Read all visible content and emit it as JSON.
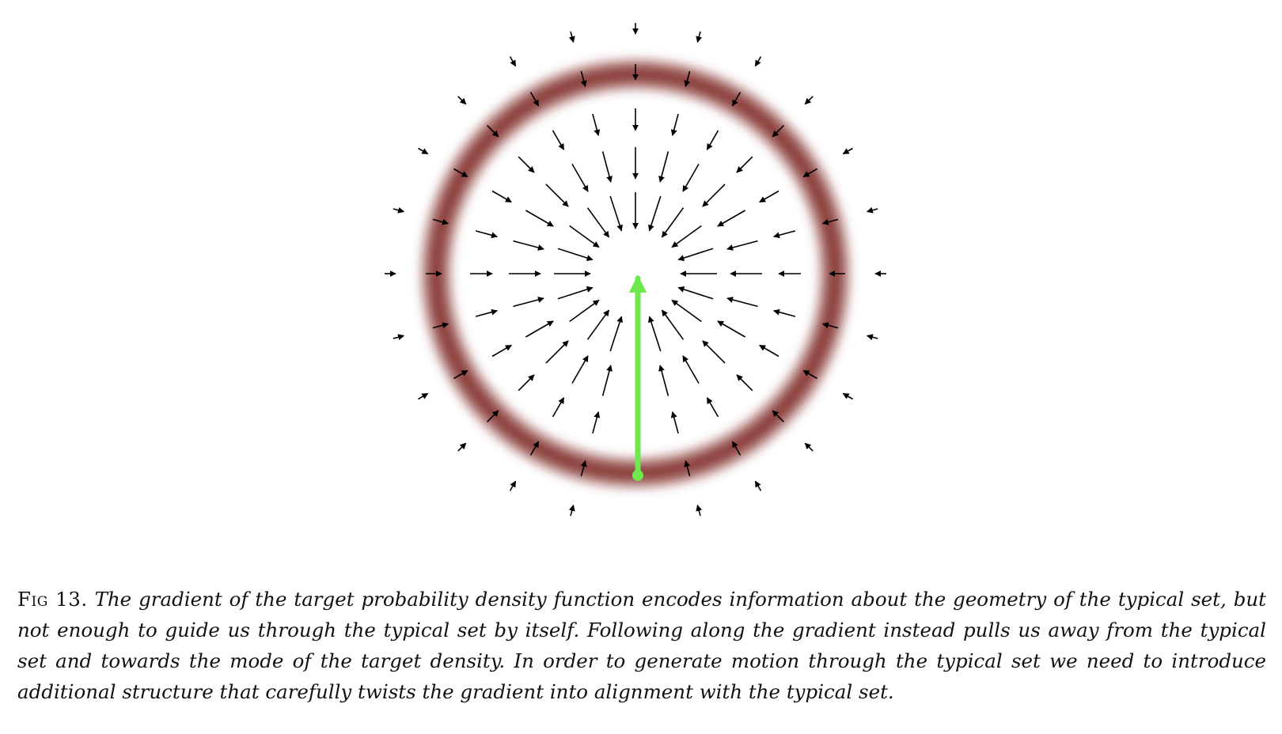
{
  "figure": {
    "ring_color": "#7f2a28",
    "arrow_color": "#000000",
    "trajectory_color": "#6ee84c"
  },
  "caption": {
    "label": "Fig 13.",
    "text": "The gradient of the target probability density function encodes information about the geometry of the typical set, but not enough to guide us through the typical set by itself. Following along the gradient instead pulls us away from the typical set and towards the mode of the target density. In order to generate motion through the typical set we need to introduce additional structure that carefully twists the gradient into alignment with the typical set."
  }
}
